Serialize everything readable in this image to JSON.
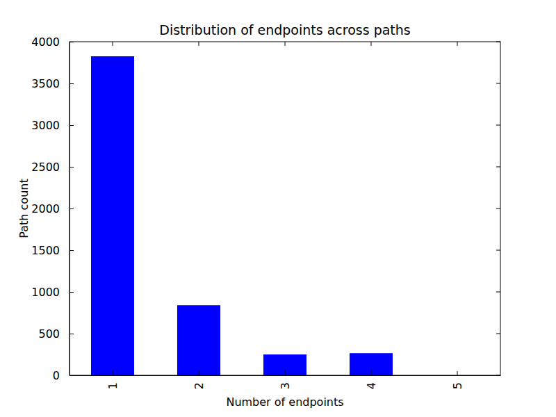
{
  "chart_data": {
    "type": "bar",
    "title": "Distribution of endpoints across paths",
    "x_label": "Number of endpoints",
    "y_label": "Path count",
    "categories": [
      "1",
      "2",
      "3",
      "4",
      "5"
    ],
    "values": [
      3825,
      840,
      250,
      265,
      0
    ],
    "color": "#0000ff",
    "ylim": [
      0,
      4000
    ],
    "yticks": [
      0,
      500,
      1000,
      1500,
      2000,
      2500,
      3000,
      3500,
      4000
    ],
    "grid": false
  }
}
